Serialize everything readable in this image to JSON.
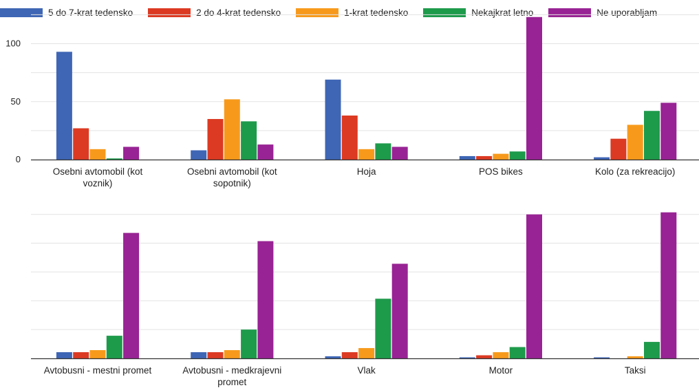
{
  "colors": {
    "series": [
      "#3f66b5",
      "#dc3a23",
      "#f79a1c",
      "#1e9a4b",
      "#982394"
    ],
    "grid": "#e3e3e3",
    "axis": "#333333"
  },
  "chart_data": [
    {
      "type": "bar",
      "legend": "top-left",
      "grid": true,
      "ylim": [
        0,
        125
      ],
      "yticks": [
        0,
        50,
        100
      ],
      "categories": [
        [
          "Osebni avtomobil (kot",
          "voznik)"
        ],
        [
          "Osebni avtomobil (kot",
          "sopotnik)"
        ],
        [
          "Hoja"
        ],
        [
          "POS bikes"
        ],
        [
          "Kolo (za rekreacijo)"
        ]
      ],
      "series": [
        {
          "name": "5 do 7-krat tedensko",
          "values": [
            93,
            8,
            69,
            3,
            2
          ]
        },
        {
          "name": "2 do 4-krat tedensko",
          "values": [
            27,
            35,
            38,
            3,
            18
          ]
        },
        {
          "name": "1-krat tedensko",
          "values": [
            9,
            52,
            9,
            5,
            30
          ]
        },
        {
          "name": "Nekajkrat letno",
          "values": [
            1,
            33,
            14,
            7,
            42
          ]
        },
        {
          "name": "Ne uporabljam",
          "values": [
            11,
            13,
            11,
            123,
            49
          ]
        }
      ]
    },
    {
      "type": "bar",
      "grid": true,
      "ylim": [
        0,
        125
      ],
      "categories": [
        [
          "Avtobusni - mestni promet"
        ],
        [
          "Avtobusni - medkrajevni",
          "promet"
        ],
        [
          "Vlak"
        ],
        [
          "Motor"
        ],
        [
          "Taksi"
        ]
      ],
      "series": [
        {
          "name": "5 do 7-krat tedensko",
          "values": [
            3,
            3,
            1,
            0.5,
            0.5
          ]
        },
        {
          "name": "2 do 4-krat tedensko",
          "values": [
            3,
            3,
            3,
            1.5,
            0
          ]
        },
        {
          "name": "1-krat tedensko",
          "values": [
            4,
            4,
            5,
            3,
            1
          ]
        },
        {
          "name": "Nekajkrat letno",
          "values": [
            11,
            14,
            29,
            5.5,
            8
          ]
        },
        {
          "name": "Ne uporabljam",
          "values": [
            61,
            57,
            46,
            70,
            71
          ]
        }
      ]
    }
  ]
}
